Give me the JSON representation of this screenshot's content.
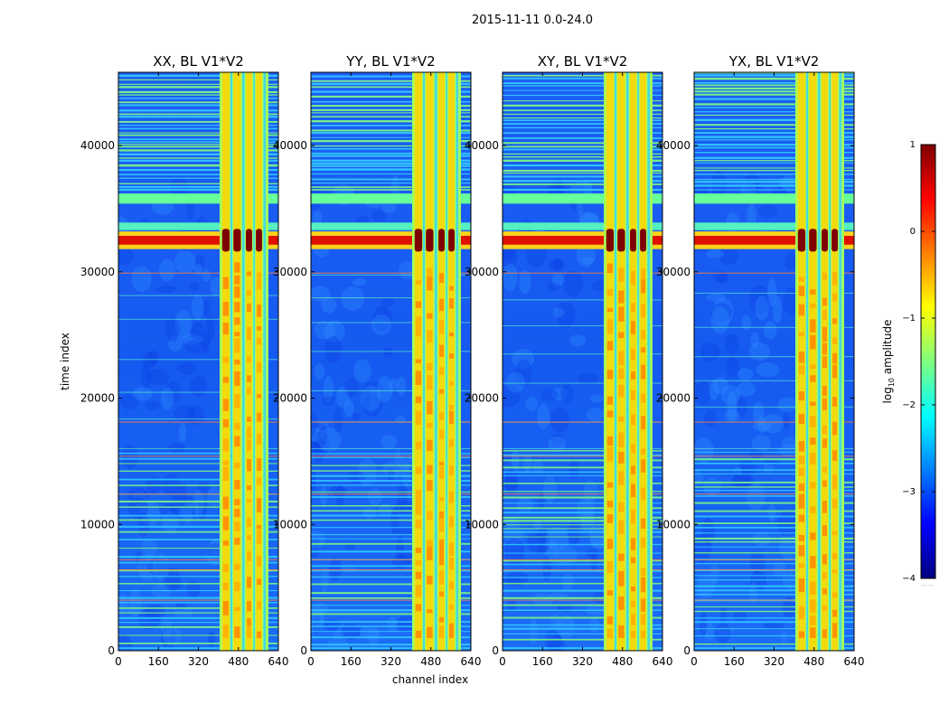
{
  "figure_title": "2015-11-11 0.0-24.0",
  "x_label": "channel index",
  "y_label": "time index",
  "colorbar": {
    "label_prefix": "log",
    "label_sub": "10",
    "label_suffix": " amplitude",
    "ticks": [
      "1",
      "0",
      "−1",
      "−2",
      "−3",
      "−4"
    ],
    "range": [
      -4,
      1
    ],
    "colormap": "jet",
    "stops": [
      "#00007f",
      "#0000ff",
      "#007fff",
      "#00ffff",
      "#7fff7f",
      "#ffff00",
      "#ff7f00",
      "#ff0000",
      "#7f0000"
    ],
    "extend_text": "......"
  },
  "chart_data": [
    {
      "type": "heatmap",
      "title": "XX, BL V1*V2",
      "xlim": [
        0,
        640
      ],
      "ylim": [
        0,
        45800
      ],
      "xticks": [
        "0",
        "160",
        "320",
        "480",
        "640"
      ],
      "yticks": [
        "0",
        "10000",
        "20000",
        "30000",
        "40000"
      ],
      "clim": [
        -4,
        1
      ],
      "bright_channel_band": [
        405,
        600
      ],
      "strong_rfi_time": 32500,
      "horizontal_band_time": 35800
    },
    {
      "type": "heatmap",
      "title": "YY, BL V1*V2",
      "xlim": [
        0,
        640
      ],
      "ylim": [
        0,
        45800
      ],
      "xticks": [
        "0",
        "160",
        "320",
        "480",
        "640"
      ],
      "yticks": [
        "0",
        "10000",
        "20000",
        "30000",
        "40000"
      ],
      "clim": [
        -4,
        1
      ],
      "bright_channel_band": [
        405,
        600
      ],
      "strong_rfi_time": 32500,
      "horizontal_band_time": 35800
    },
    {
      "type": "heatmap",
      "title": "XY, BL V1*V2",
      "xlim": [
        0,
        640
      ],
      "ylim": [
        0,
        45800
      ],
      "xticks": [
        "0",
        "160",
        "320",
        "480",
        "640"
      ],
      "yticks": [
        "0",
        "10000",
        "20000",
        "30000",
        "40000"
      ],
      "clim": [
        -4,
        1
      ],
      "bright_channel_band": [
        405,
        600
      ],
      "strong_rfi_time": 32500,
      "horizontal_band_time": 35800
    },
    {
      "type": "heatmap",
      "title": "YX, BL V1*V2",
      "xlim": [
        0,
        640
      ],
      "ylim": [
        0,
        45800
      ],
      "xticks": [
        "0",
        "160",
        "320",
        "480",
        "640"
      ],
      "yticks": [
        "0",
        "10000",
        "20000",
        "30000",
        "40000"
      ],
      "clim": [
        -4,
        1
      ],
      "bright_channel_band": [
        405,
        600
      ],
      "strong_rfi_time": 32500,
      "horizontal_band_time": 35800
    }
  ]
}
